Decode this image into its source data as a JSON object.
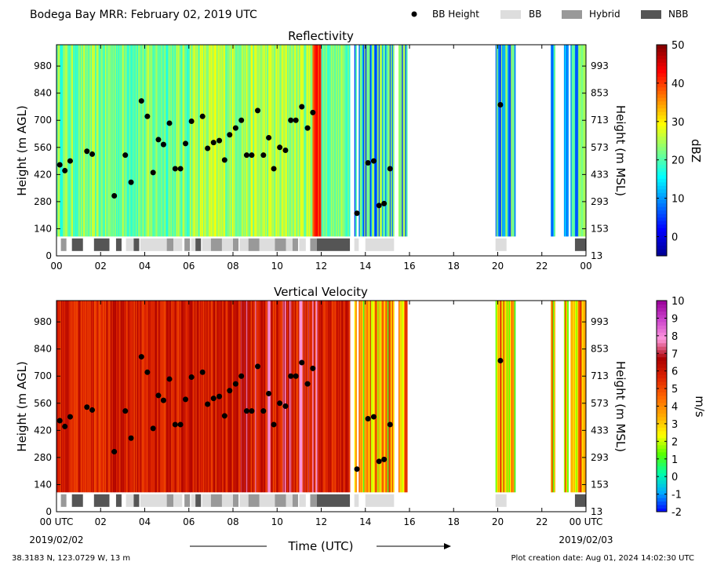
{
  "header": {
    "title": "Bodega Bay MRR:  February 02, 2019 UTC",
    "legend": [
      {
        "label": "BB Height",
        "kind": "dot",
        "color": "#000000"
      },
      {
        "label": "BB",
        "kind": "box",
        "color": "#dddddd"
      },
      {
        "label": "Hybrid",
        "kind": "box",
        "color": "#999999"
      },
      {
        "label": "NBB",
        "kind": "box",
        "color": "#555555"
      }
    ]
  },
  "footer": {
    "location": "38.3183 N, 123.0729 W, 13 m",
    "creation": "Plot creation date: Aug 01, 2024 14:02:30 UTC",
    "xlabel": "Time (UTC)",
    "date_start": "2019/02/02",
    "date_end": "2019/02/03"
  },
  "chart_data": [
    {
      "type": "heatmap",
      "title": "Reflectivity",
      "ylabel": "Height (m AGL)",
      "ylabel_right": "Height (m MSL)",
      "xlim": [
        0,
        24
      ],
      "ylim": [
        0,
        1090
      ],
      "x_ticks": [
        "00",
        "02",
        "04",
        "06",
        "08",
        "10",
        "12",
        "14",
        "16",
        "18",
        "20",
        "22",
        "00"
      ],
      "y_ticks": [
        0,
        140,
        280,
        420,
        560,
        700,
        840,
        980
      ],
      "y_ticks_right": [
        "13",
        "153",
        "293",
        "433",
        "573",
        "713",
        "853",
        "993"
      ],
      "colorbar": {
        "label": "dBZ",
        "range": [
          -5,
          50
        ],
        "ticks": [
          "0",
          "10",
          "20",
          "30",
          "40",
          "50"
        ],
        "colors": [
          "#00008f",
          "#0000ff",
          "#0080ff",
          "#00ffff",
          "#80ff80",
          "#ffff00",
          "#ff8000",
          "#ff0000",
          "#800000"
        ]
      },
      "bb_height": [
        {
          "t": 0.15,
          "h": 470
        },
        {
          "t": 0.38,
          "h": 440
        },
        {
          "t": 0.62,
          "h": 490
        },
        {
          "t": 1.38,
          "h": 540
        },
        {
          "t": 1.62,
          "h": 525
        },
        {
          "t": 2.62,
          "h": 310
        },
        {
          "t": 3.12,
          "h": 520
        },
        {
          "t": 3.38,
          "h": 380
        },
        {
          "t": 3.85,
          "h": 800
        },
        {
          "t": 4.12,
          "h": 720
        },
        {
          "t": 4.38,
          "h": 430
        },
        {
          "t": 4.62,
          "h": 600
        },
        {
          "t": 4.85,
          "h": 575
        },
        {
          "t": 5.12,
          "h": 685
        },
        {
          "t": 5.38,
          "h": 450
        },
        {
          "t": 5.62,
          "h": 450
        },
        {
          "t": 5.85,
          "h": 580
        },
        {
          "t": 6.12,
          "h": 695
        },
        {
          "t": 6.62,
          "h": 720
        },
        {
          "t": 6.85,
          "h": 555
        },
        {
          "t": 7.12,
          "h": 585
        },
        {
          "t": 7.38,
          "h": 595
        },
        {
          "t": 7.62,
          "h": 495
        },
        {
          "t": 7.85,
          "h": 625
        },
        {
          "t": 8.12,
          "h": 660
        },
        {
          "t": 8.38,
          "h": 700
        },
        {
          "t": 8.62,
          "h": 520
        },
        {
          "t": 8.85,
          "h": 520
        },
        {
          "t": 9.12,
          "h": 750
        },
        {
          "t": 9.38,
          "h": 520
        },
        {
          "t": 9.62,
          "h": 610
        },
        {
          "t": 9.85,
          "h": 450
        },
        {
          "t": 10.12,
          "h": 560
        },
        {
          "t": 10.38,
          "h": 545
        },
        {
          "t": 10.62,
          "h": 700
        },
        {
          "t": 10.85,
          "h": 700
        },
        {
          "t": 11.12,
          "h": 770
        },
        {
          "t": 11.38,
          "h": 660
        },
        {
          "t": 11.62,
          "h": 740
        },
        {
          "t": 13.62,
          "h": 220
        },
        {
          "t": 14.12,
          "h": 480
        },
        {
          "t": 14.38,
          "h": 490
        },
        {
          "t": 14.62,
          "h": 260
        },
        {
          "t": 14.85,
          "h": 270
        },
        {
          "t": 15.12,
          "h": 450
        },
        {
          "t": 20.12,
          "h": 780
        }
      ],
      "classification": [
        {
          "start": 0.2,
          "end": 0.45,
          "class": "Hybrid"
        },
        {
          "start": 0.7,
          "end": 1.2,
          "class": "NBB"
        },
        {
          "start": 1.7,
          "end": 2.4,
          "class": "NBB"
        },
        {
          "start": 2.7,
          "end": 2.95,
          "class": "NBB"
        },
        {
          "start": 3.15,
          "end": 3.5,
          "class": "BB"
        },
        {
          "start": 3.5,
          "end": 3.75,
          "class": "NBB"
        },
        {
          "start": 3.8,
          "end": 5.0,
          "class": "BB"
        },
        {
          "start": 5.0,
          "end": 5.3,
          "class": "Hybrid"
        },
        {
          "start": 5.3,
          "end": 5.7,
          "class": "BB"
        },
        {
          "start": 5.8,
          "end": 6.05,
          "class": "Hybrid"
        },
        {
          "start": 6.1,
          "end": 6.3,
          "class": "BB"
        },
        {
          "start": 6.3,
          "end": 6.55,
          "class": "NBB"
        },
        {
          "start": 6.6,
          "end": 7.0,
          "class": "BB"
        },
        {
          "start": 7.0,
          "end": 7.5,
          "class": "Hybrid"
        },
        {
          "start": 7.5,
          "end": 8.0,
          "class": "BB"
        },
        {
          "start": 8.0,
          "end": 8.25,
          "class": "Hybrid"
        },
        {
          "start": 8.3,
          "end": 8.7,
          "class": "BB"
        },
        {
          "start": 8.7,
          "end": 9.2,
          "class": "Hybrid"
        },
        {
          "start": 9.2,
          "end": 9.9,
          "class": "BB"
        },
        {
          "start": 9.9,
          "end": 10.4,
          "class": "Hybrid"
        },
        {
          "start": 10.4,
          "end": 10.7,
          "class": "BB"
        },
        {
          "start": 10.7,
          "end": 10.95,
          "class": "Hybrid"
        },
        {
          "start": 11.0,
          "end": 11.3,
          "class": "BB"
        },
        {
          "start": 11.5,
          "end": 11.8,
          "class": "Hybrid"
        },
        {
          "start": 11.8,
          "end": 13.3,
          "class": "NBB"
        },
        {
          "start": 13.5,
          "end": 13.7,
          "class": "BB"
        },
        {
          "start": 14.0,
          "end": 15.3,
          "class": "BB"
        },
        {
          "start": 19.9,
          "end": 20.4,
          "class": "BB"
        },
        {
          "start": 23.5,
          "end": 24.0,
          "class": "NBB"
        }
      ]
    },
    {
      "type": "heatmap",
      "title": "Vertical Velocity",
      "ylabel": "Height (m AGL)",
      "ylabel_right": "Height (m MSL)",
      "xlim": [
        0,
        24
      ],
      "ylim": [
        0,
        1090
      ],
      "x_ticks": [
        "00 UTC",
        "02",
        "04",
        "06",
        "08",
        "10",
        "12",
        "14",
        "16",
        "18",
        "20",
        "22",
        "00 UTC"
      ],
      "y_ticks": [
        0,
        140,
        280,
        420,
        560,
        700,
        840,
        980
      ],
      "y_ticks_right": [
        "13",
        "153",
        "293",
        "433",
        "573",
        "713",
        "853",
        "993"
      ],
      "colorbar": {
        "label": "m/s",
        "range": [
          -2,
          10
        ],
        "ticks": [
          "-2",
          "-1",
          "0",
          "1",
          "2",
          "3",
          "4",
          "5",
          "6",
          "7",
          "8",
          "9",
          "10"
        ],
        "colors": [
          "#0000ff",
          "#00aaff",
          "#00ffaa",
          "#55ff00",
          "#ffff00",
          "#ffaa00",
          "#ff6600",
          "#dd2200",
          "#aa0000",
          "#ff99dd",
          "#cc44cc",
          "#990099"
        ]
      },
      "bb_height": "same as Reflectivity",
      "classification": "same as Reflectivity"
    }
  ]
}
